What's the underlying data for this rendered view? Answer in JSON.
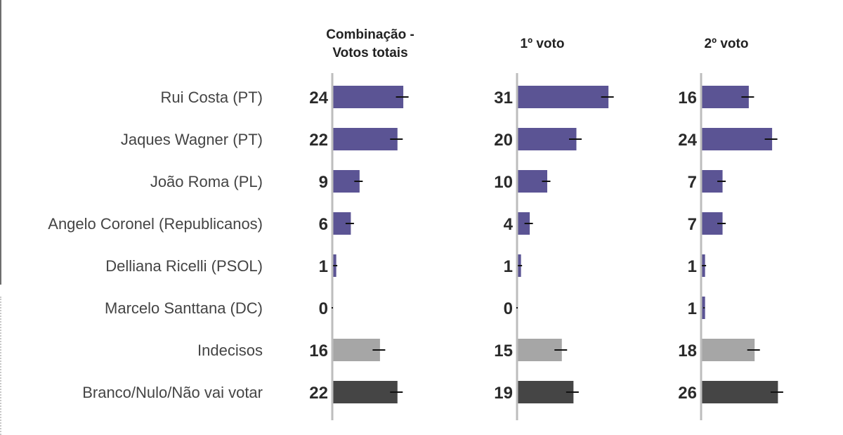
{
  "chart_data": {
    "type": "bar",
    "orientation": "horizontal",
    "categories": [
      "Rui Costa (PT)",
      "Jaques Wagner (PT)",
      "João Roma (PL)",
      "Angelo Coronel (Republicanos)",
      "Delliana Ricelli (PSOL)",
      "Marcelo Santtana (DC)",
      "Indecisos",
      "Branco/Nulo/Não vai votar"
    ],
    "category_types": [
      "candidate",
      "candidate",
      "candidate",
      "candidate",
      "candidate",
      "candidate",
      "undecided",
      "blank"
    ],
    "colors": {
      "candidate": "#5b5494",
      "undecided": "#a6a6a6",
      "blank": "#454545",
      "error_bar": "#111111",
      "axis": "#bdbdbd"
    },
    "error_bars": true,
    "panels": [
      {
        "title_lines": [
          "Combinação -",
          "Votos totais"
        ],
        "values": [
          24,
          22,
          9,
          6,
          1,
          0,
          16,
          22
        ]
      },
      {
        "title_lines": [
          "1º voto"
        ],
        "values": [
          31,
          20,
          10,
          4,
          1,
          0,
          15,
          19
        ]
      },
      {
        "title_lines": [
          "2º voto"
        ],
        "values": [
          16,
          24,
          7,
          7,
          1,
          1,
          18,
          26
        ]
      }
    ]
  }
}
